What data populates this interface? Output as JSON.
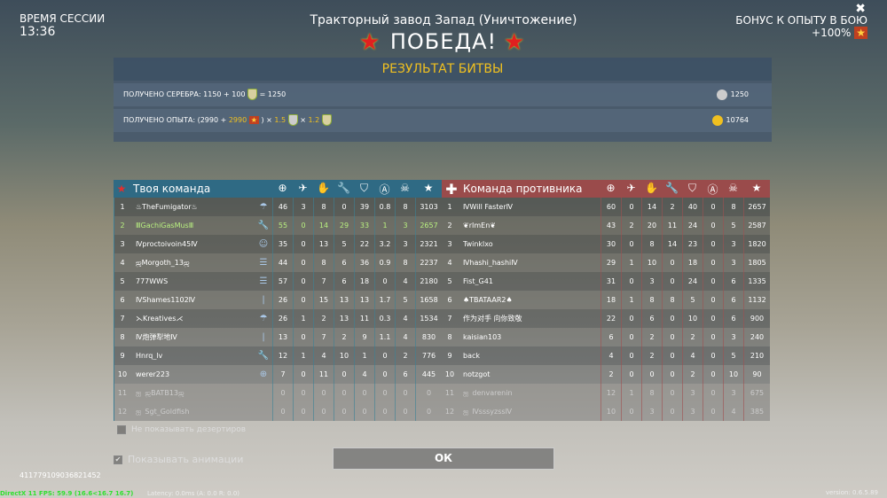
{
  "session": {
    "label": "ВРЕМЯ СЕССИИ",
    "time": "13:36"
  },
  "bonus": {
    "label": "БОНУС К ОПЫТУ В БОЮ",
    "value": "+100%"
  },
  "map_title": "Тракторный завод Запад (Уничтожение)",
  "result": "ПОБЕДА!",
  "battle_result_title": "РЕЗУЛЬТАТ БИТВЫ",
  "silver": {
    "label": "ПОЛУЧЕНО СЕРЕБРА: 1150 + 100",
    "total": "= 1250",
    "value": "1250"
  },
  "exp": {
    "label": "ПОЛУЧЕНО ОПЫТА: (2990 +",
    "bonus": "2990",
    "close": ") × ",
    "mult1": "1.5",
    "x": " × ",
    "mult2": "1.2",
    "value": "10764"
  },
  "columns": [
    "target-icon",
    "plane-icon",
    "hand-icon",
    "wrench-icon",
    "shield-a-icon",
    "circle-a-icon",
    "skull-icon",
    "star-icon"
  ],
  "my_team": {
    "title": "Твоя команда",
    "color": "#2f6a84",
    "rows": [
      {
        "n": "1",
        "name": "♨TheFumigator♨",
        "cls": "paratrooper-icon",
        "s": [
          "46",
          "3",
          "8",
          "0",
          "39",
          "0.8",
          "8",
          "3103"
        ]
      },
      {
        "n": "2",
        "name": "ⅢGachiGasMusⅢ",
        "cls": "wrench-icon",
        "s": [
          "55",
          "0",
          "14",
          "29",
          "33",
          "1",
          "3",
          "2657"
        ],
        "me": true
      },
      {
        "n": "3",
        "name": "Ⅳproctoivoin45Ⅳ",
        "cls": "gamepad-icon",
        "s": [
          "35",
          "0",
          "13",
          "5",
          "22",
          "3.2",
          "3",
          "2321"
        ]
      },
      {
        "n": "4",
        "name": "ஜMorgoth_13ஜ",
        "cls": "list-icon",
        "s": [
          "44",
          "0",
          "8",
          "6",
          "36",
          "0.9",
          "8",
          "2237"
        ]
      },
      {
        "n": "5",
        "name": "777WWS",
        "cls": "list-icon",
        "s": [
          "57",
          "0",
          "7",
          "6",
          "18",
          "0",
          "4",
          "2180"
        ]
      },
      {
        "n": "6",
        "name": "ⅣShames1102Ⅳ",
        "cls": "bar-icon",
        "s": [
          "26",
          "0",
          "15",
          "13",
          "13",
          "1.7",
          "5",
          "1658"
        ]
      },
      {
        "n": "7",
        "name": "⋋Kreatives⋌",
        "cls": "paratrooper-icon",
        "s": [
          "26",
          "1",
          "2",
          "13",
          "11",
          "0.3",
          "4",
          "1534"
        ]
      },
      {
        "n": "8",
        "name": "Ⅳ炮弹犁地Ⅳ",
        "cls": "bar-icon",
        "s": [
          "13",
          "0",
          "7",
          "2",
          "9",
          "1.1",
          "4",
          "830"
        ]
      },
      {
        "n": "9",
        "name": "Hnrq_lv",
        "cls": "wrench-icon",
        "s": [
          "12",
          "1",
          "4",
          "10",
          "1",
          "0",
          "2",
          "776"
        ]
      },
      {
        "n": "10",
        "name": "werer223",
        "cls": "target-icon",
        "s": [
          "7",
          "0",
          "11",
          "0",
          "4",
          "0",
          "6",
          "445"
        ]
      },
      {
        "n": "11",
        "name": "ஜBATB13ஜ",
        "cls": "",
        "s": [
          "0",
          "0",
          "0",
          "0",
          "0",
          "0",
          "0",
          "0"
        ],
        "deserter": true
      },
      {
        "n": "12",
        "name": "Sgt_Goldfish",
        "cls": "",
        "s": [
          "0",
          "0",
          "0",
          "0",
          "0",
          "0",
          "0",
          "0"
        ],
        "deserter": true
      }
    ]
  },
  "enemy_team": {
    "title": "Команда противника",
    "color": "#9a4b4b",
    "rows": [
      {
        "n": "1",
        "name": "ⅣWill FasterⅣ",
        "s": [
          "60",
          "0",
          "14",
          "2",
          "40",
          "0",
          "8",
          "2657"
        ]
      },
      {
        "n": "2",
        "name": "❦rImEn❦",
        "s": [
          "43",
          "2",
          "20",
          "11",
          "24",
          "0",
          "5",
          "2587"
        ]
      },
      {
        "n": "3",
        "name": "Twinklxo",
        "s": [
          "30",
          "0",
          "8",
          "14",
          "23",
          "0",
          "3",
          "1820"
        ]
      },
      {
        "n": "4",
        "name": "Ⅳhashi_hashiⅣ",
        "s": [
          "29",
          "1",
          "10",
          "0",
          "18",
          "0",
          "3",
          "1805"
        ]
      },
      {
        "n": "5",
        "name": "Fist_G41",
        "s": [
          "31",
          "0",
          "3",
          "0",
          "24",
          "0",
          "6",
          "1335"
        ]
      },
      {
        "n": "6",
        "name": "♠TBATAAR2♠",
        "s": [
          "18",
          "1",
          "8",
          "8",
          "5",
          "0",
          "6",
          "1132"
        ]
      },
      {
        "n": "7",
        "name": "作为对手 向你致敬",
        "s": [
          "22",
          "0",
          "6",
          "0",
          "10",
          "0",
          "6",
          "900"
        ]
      },
      {
        "n": "8",
        "name": "kaisian103",
        "s": [
          "6",
          "0",
          "2",
          "0",
          "2",
          "0",
          "3",
          "240"
        ]
      },
      {
        "n": "9",
        "name": "back",
        "s": [
          "4",
          "0",
          "2",
          "0",
          "4",
          "0",
          "5",
          "210"
        ]
      },
      {
        "n": "10",
        "name": "notzgot",
        "s": [
          "2",
          "0",
          "0",
          "0",
          "2",
          "0",
          "10",
          "90"
        ]
      },
      {
        "n": "11",
        "name": "denvarenin",
        "s": [
          "12",
          "1",
          "8",
          "0",
          "3",
          "0",
          "3",
          "675"
        ],
        "deserter": true
      },
      {
        "n": "12",
        "name": "ⅣsssyzssⅣ",
        "s": [
          "10",
          "0",
          "3",
          "0",
          "3",
          "0",
          "4",
          "385"
        ],
        "deserter": true
      }
    ]
  },
  "hide_deserters": {
    "label": "Не показывать дезертиров",
    "checked": false
  },
  "show_animations": {
    "label": "Показывать анимации",
    "checked": true
  },
  "ok_label": "ОК",
  "player_id": "411779109036821452",
  "fps": "DirectX 11 FPS: 59.9 (16.6<16.7 16.7)",
  "latency": "Latency: 0.0ms (A: 0.0 R: 0.0)",
  "version": "version: 0.6.5.89"
}
